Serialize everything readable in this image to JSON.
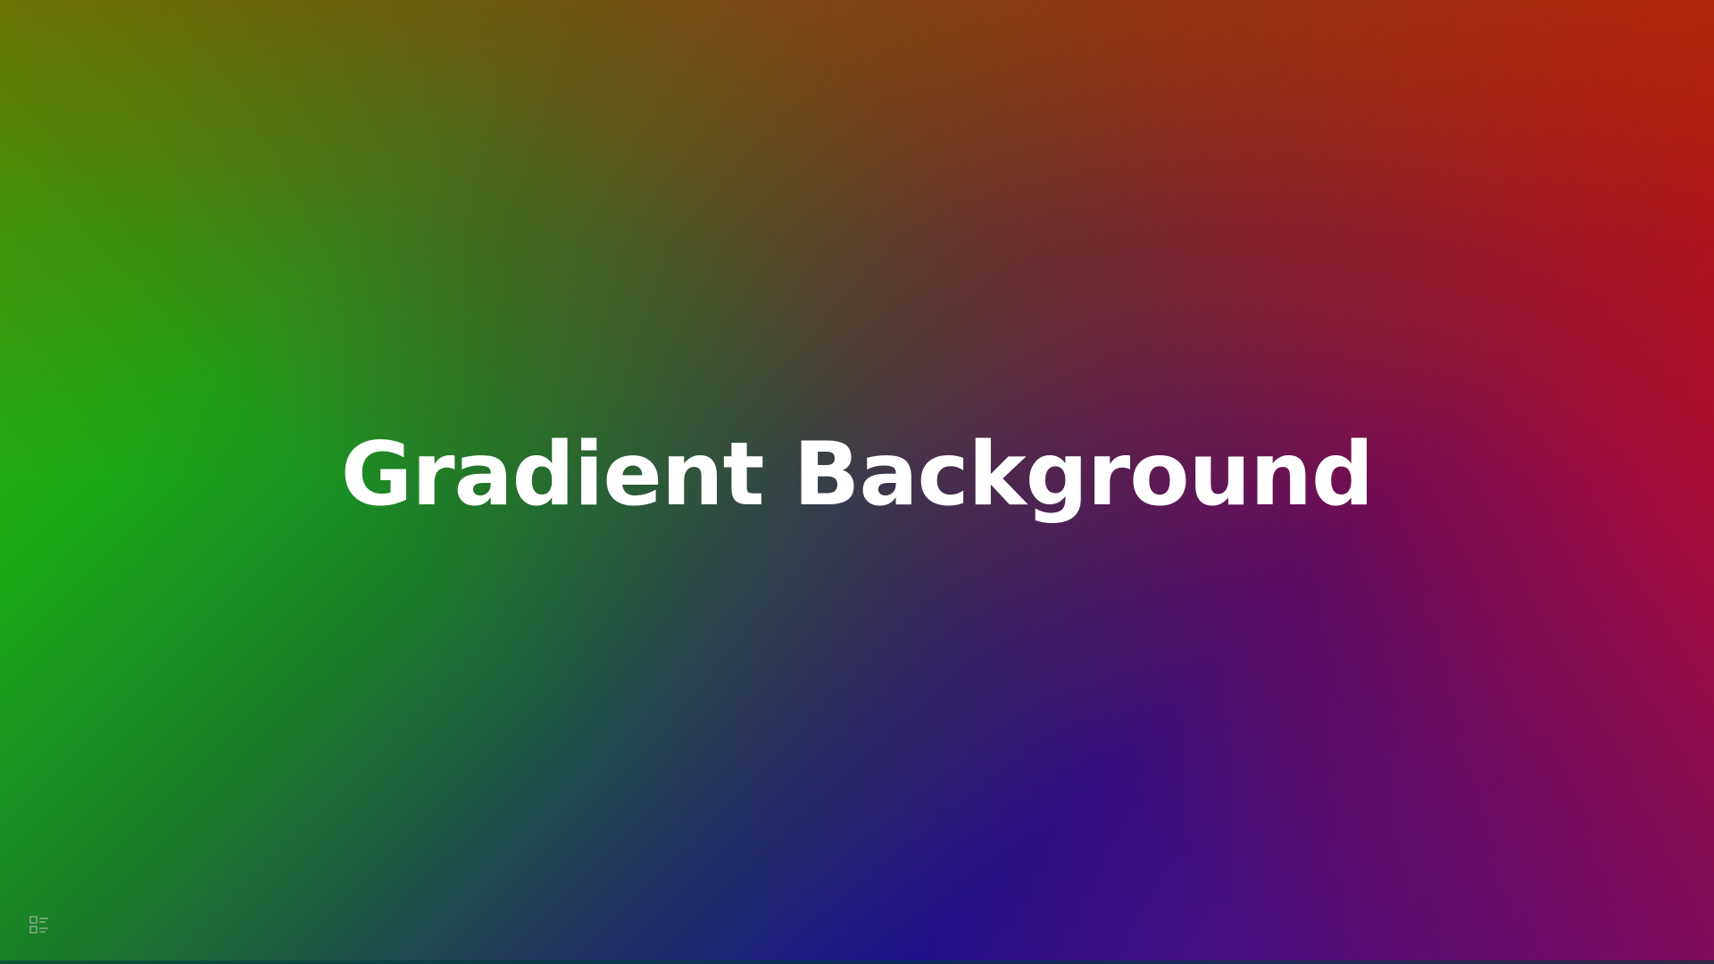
{
  "slide": {
    "title": "Gradient Background"
  },
  "controls": {
    "menu_icon": "slide-menu-icon"
  },
  "colors": {
    "top_left": "#3cb800",
    "top_right": "#dc0014",
    "bottom_center": "#1a1090",
    "bottom_right": "#5a0d8a",
    "title_text": "#ffffff"
  }
}
